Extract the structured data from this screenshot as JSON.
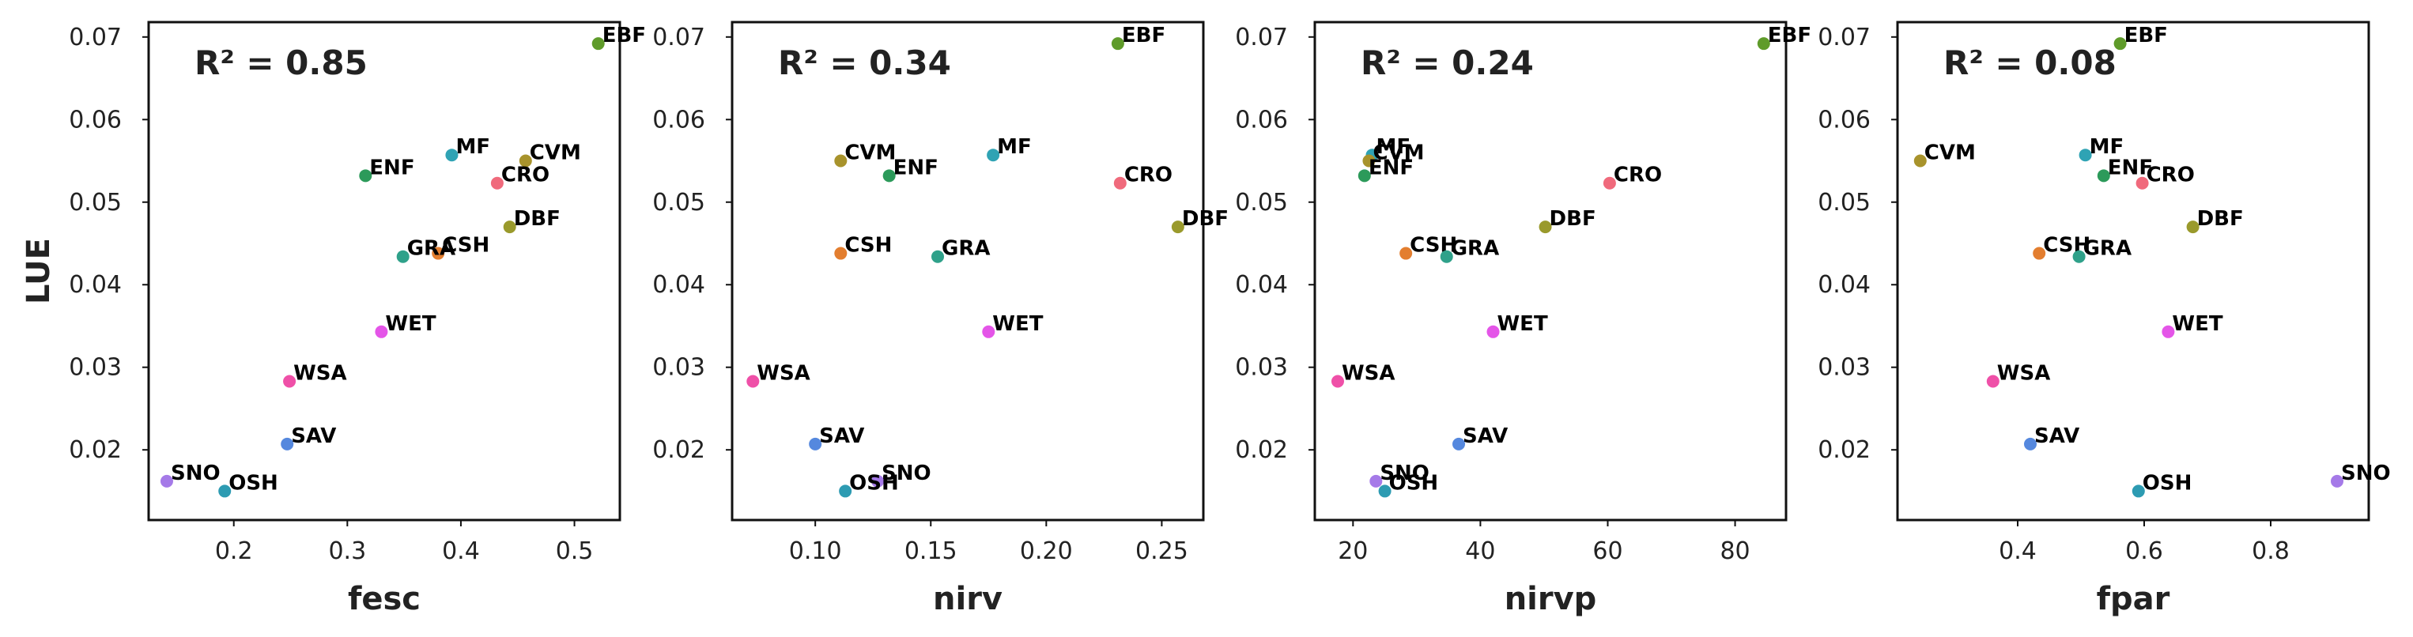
{
  "chart_data": [
    {
      "type": "scatter",
      "xlabel": "fesc",
      "ylabel": "LUE",
      "annotation": "R² = 0.85",
      "xlim": [
        0.125,
        0.54
      ],
      "ylim": [
        0.0115,
        0.0718
      ],
      "xticks": [
        0.2,
        0.3,
        0.4,
        0.5
      ],
      "xtick_labels": [
        "0.2",
        "0.3",
        "0.4",
        "0.5"
      ],
      "yticks": [
        0.02,
        0.03,
        0.04,
        0.05,
        0.06,
        0.07
      ],
      "ytick_labels": [
        "0.02",
        "0.03",
        "0.04",
        "0.05",
        "0.06",
        "0.07"
      ],
      "points": [
        {
          "label": "EBF",
          "x": 0.521,
          "y": 0.0692
        },
        {
          "label": "MF",
          "x": 0.392,
          "y": 0.0557
        },
        {
          "label": "CVM",
          "x": 0.457,
          "y": 0.055
        },
        {
          "label": "ENF",
          "x": 0.316,
          "y": 0.0532
        },
        {
          "label": "CRO",
          "x": 0.432,
          "y": 0.0523
        },
        {
          "label": "DBF",
          "x": 0.443,
          "y": 0.047
        },
        {
          "label": "CSH",
          "x": 0.38,
          "y": 0.0438
        },
        {
          "label": "GRA",
          "x": 0.349,
          "y": 0.0434
        },
        {
          "label": "WET",
          "x": 0.33,
          "y": 0.0343
        },
        {
          "label": "WSA",
          "x": 0.249,
          "y": 0.0283
        },
        {
          "label": "SAV",
          "x": 0.247,
          "y": 0.0207
        },
        {
          "label": "SNO",
          "x": 0.141,
          "y": 0.0162
        },
        {
          "label": "OSH",
          "x": 0.192,
          "y": 0.015
        }
      ]
    },
    {
      "type": "scatter",
      "xlabel": "nirv",
      "ylabel": "",
      "annotation": "R² = 0.34",
      "xlim": [
        0.064,
        0.268
      ],
      "ylim": [
        0.0115,
        0.0718
      ],
      "xticks": [
        0.1,
        0.15,
        0.2,
        0.25
      ],
      "xtick_labels": [
        "0.10",
        "0.15",
        "0.20",
        "0.25"
      ],
      "yticks": [
        0.02,
        0.03,
        0.04,
        0.05,
        0.06,
        0.07
      ],
      "ytick_labels": [
        "0.02",
        "0.03",
        "0.04",
        "0.05",
        "0.06",
        "0.07"
      ],
      "points": [
        {
          "label": "EBF",
          "x": 0.231,
          "y": 0.0692
        },
        {
          "label": "CVM",
          "x": 0.111,
          "y": 0.055
        },
        {
          "label": "MF",
          "x": 0.177,
          "y": 0.0557
        },
        {
          "label": "ENF",
          "x": 0.132,
          "y": 0.0532
        },
        {
          "label": "CRO",
          "x": 0.232,
          "y": 0.0523
        },
        {
          "label": "DBF",
          "x": 0.257,
          "y": 0.047
        },
        {
          "label": "CSH",
          "x": 0.111,
          "y": 0.0438
        },
        {
          "label": "GRA",
          "x": 0.153,
          "y": 0.0434
        },
        {
          "label": "WET",
          "x": 0.175,
          "y": 0.0343
        },
        {
          "label": "WSA",
          "x": 0.073,
          "y": 0.0283
        },
        {
          "label": "SAV",
          "x": 0.1,
          "y": 0.0207
        },
        {
          "label": "SNO",
          "x": 0.127,
          "y": 0.0162
        },
        {
          "label": "OSH",
          "x": 0.113,
          "y": 0.015
        }
      ]
    },
    {
      "type": "scatter",
      "xlabel": "nirvp",
      "ylabel": "",
      "annotation": "R² = 0.24",
      "xlim": [
        14,
        88
      ],
      "ylim": [
        0.0115,
        0.0718
      ],
      "xticks": [
        20,
        40,
        60,
        80
      ],
      "xtick_labels": [
        "20",
        "40",
        "60",
        "80"
      ],
      "yticks": [
        0.02,
        0.03,
        0.04,
        0.05,
        0.06,
        0.07
      ],
      "ytick_labels": [
        "0.02",
        "0.03",
        "0.04",
        "0.05",
        "0.06",
        "0.07"
      ],
      "points": [
        {
          "label": "EBF",
          "x": 84.5,
          "y": 0.0692
        },
        {
          "label": "MF",
          "x": 23.0,
          "y": 0.0557
        },
        {
          "label": "CVM",
          "x": 22.5,
          "y": 0.055
        },
        {
          "label": "ENF",
          "x": 21.8,
          "y": 0.0532
        },
        {
          "label": "CRO",
          "x": 60.3,
          "y": 0.0523
        },
        {
          "label": "DBF",
          "x": 50.2,
          "y": 0.047
        },
        {
          "label": "CSH",
          "x": 28.3,
          "y": 0.0438
        },
        {
          "label": "GRA",
          "x": 34.7,
          "y": 0.0434
        },
        {
          "label": "WET",
          "x": 42.0,
          "y": 0.0343
        },
        {
          "label": "WSA",
          "x": 17.6,
          "y": 0.0283
        },
        {
          "label": "SAV",
          "x": 36.6,
          "y": 0.0207
        },
        {
          "label": "SNO",
          "x": 23.6,
          "y": 0.0162
        },
        {
          "label": "OSH",
          "x": 25.0,
          "y": 0.015
        }
      ]
    },
    {
      "type": "scatter",
      "xlabel": "fpar",
      "ylabel": "",
      "annotation": "R² = 0.08",
      "xlim": [
        0.21,
        0.955
      ],
      "ylim": [
        0.0115,
        0.0718
      ],
      "xticks": [
        0.4,
        0.6,
        0.8
      ],
      "xtick_labels": [
        "0.4",
        "0.6",
        "0.8"
      ],
      "yticks": [
        0.02,
        0.03,
        0.04,
        0.05,
        0.06,
        0.07
      ],
      "ytick_labels": [
        "0.02",
        "0.03",
        "0.04",
        "0.05",
        "0.06",
        "0.07"
      ],
      "points": [
        {
          "label": "EBF",
          "x": 0.562,
          "y": 0.0692
        },
        {
          "label": "CVM",
          "x": 0.246,
          "y": 0.055
        },
        {
          "label": "MF",
          "x": 0.507,
          "y": 0.0557
        },
        {
          "label": "ENF",
          "x": 0.536,
          "y": 0.0532
        },
        {
          "label": "CRO",
          "x": 0.597,
          "y": 0.0523
        },
        {
          "label": "DBF",
          "x": 0.677,
          "y": 0.047
        },
        {
          "label": "CSH",
          "x": 0.434,
          "y": 0.0438
        },
        {
          "label": "GRA",
          "x": 0.497,
          "y": 0.0434
        },
        {
          "label": "WET",
          "x": 0.638,
          "y": 0.0343
        },
        {
          "label": "WSA",
          "x": 0.361,
          "y": 0.0283
        },
        {
          "label": "SAV",
          "x": 0.42,
          "y": 0.0207
        },
        {
          "label": "SNO",
          "x": 0.905,
          "y": 0.0162
        },
        {
          "label": "OSH",
          "x": 0.591,
          "y": 0.015
        }
      ]
    }
  ],
  "colors": {
    "EBF": "#5f9b2a",
    "MF": "#2fa3b4",
    "CVM": "#a8932c",
    "ENF": "#2c9a5a",
    "CRO": "#f06a7c",
    "DBF": "#9a9a2c",
    "CSH": "#e37e2f",
    "GRA": "#2fa18a",
    "WET": "#e455e8",
    "WSA": "#ef50a8",
    "SAV": "#5588de",
    "SNO": "#a57ae8",
    "OSH": "#2d9bb2"
  }
}
